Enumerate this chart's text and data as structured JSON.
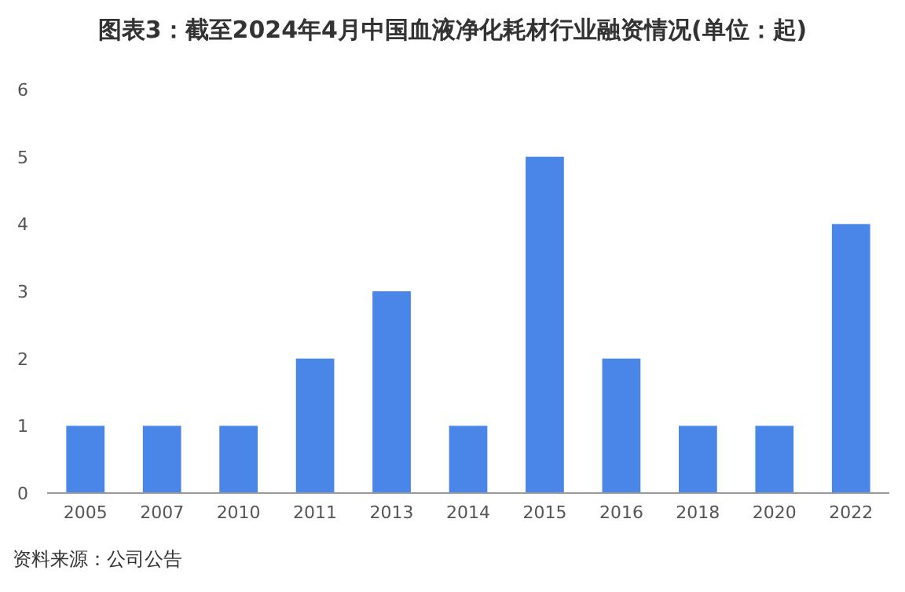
{
  "chart_data": {
    "type": "bar",
    "title": "图表3：截至2024年4月中国血液净化耗材行业融资情况(单位：起)",
    "categories": [
      "2005",
      "2007",
      "2010",
      "2011",
      "2013",
      "2014",
      "2015",
      "2016",
      "2018",
      "2020",
      "2022"
    ],
    "values": [
      1,
      1,
      1,
      2,
      3,
      1,
      5,
      2,
      1,
      1,
      4
    ],
    "color": "#4a86e8",
    "ylim": [
      0,
      6
    ],
    "yticks": [
      0,
      1,
      2,
      3,
      4,
      5,
      6
    ],
    "annotations": [
      "资料来源：公司公告"
    ]
  }
}
